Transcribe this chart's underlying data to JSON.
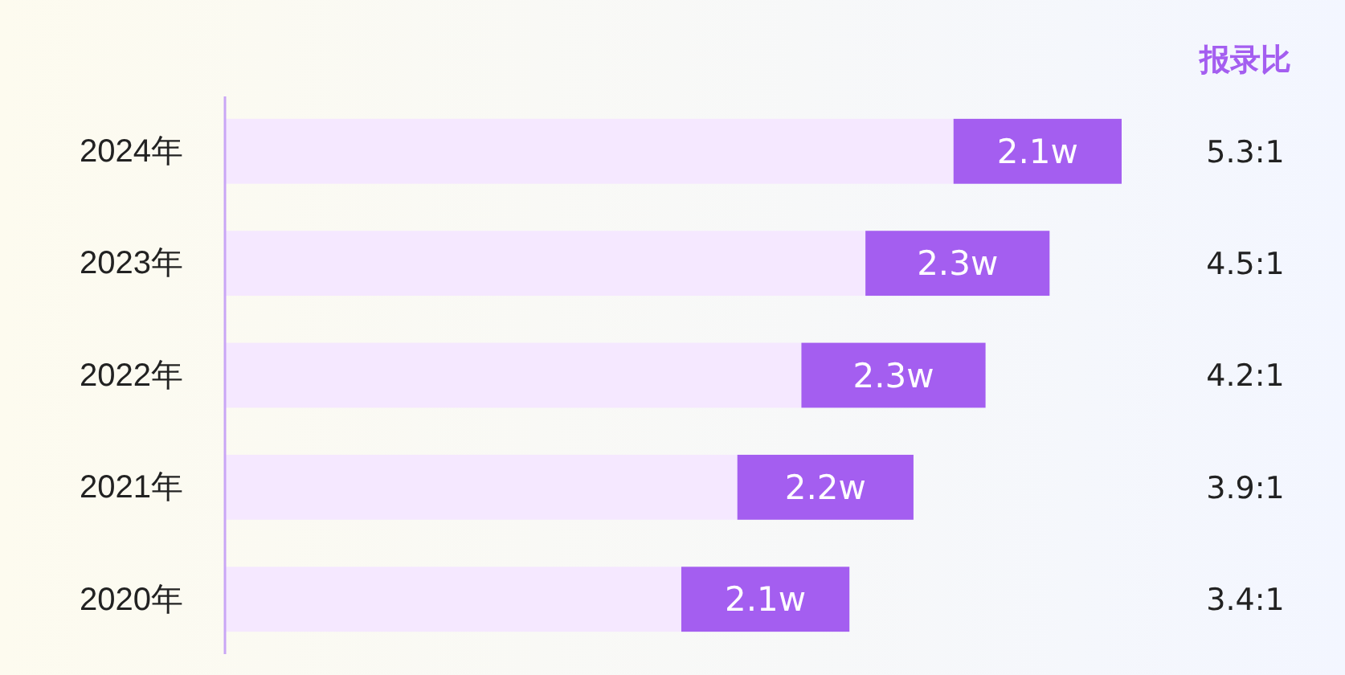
{
  "chart_data": {
    "type": "bar",
    "orientation": "horizontal",
    "stacked": true,
    "tick_labels": "y",
    "categories": [
      "2024年",
      "2023年",
      "2022年",
      "2021年",
      "2020年"
    ],
    "series": [
      {
        "color": "#f5e8ff",
        "values": [
          9.1,
          8.0,
          7.2,
          6.4,
          5.7
        ]
      },
      {
        "color": "#a45ef0",
        "values": [
          2.1,
          2.3,
          2.3,
          2.2,
          2.1
        ],
        "value_labels": [
          "2.1w",
          "2.3w",
          "2.3w",
          "2.2w",
          "2.1w"
        ]
      }
    ],
    "annotations": [
      "报录比",
      "5.3:1",
      "4.5:1",
      "4.2:1",
      "3.9:1",
      "3.4:1"
    ]
  }
}
